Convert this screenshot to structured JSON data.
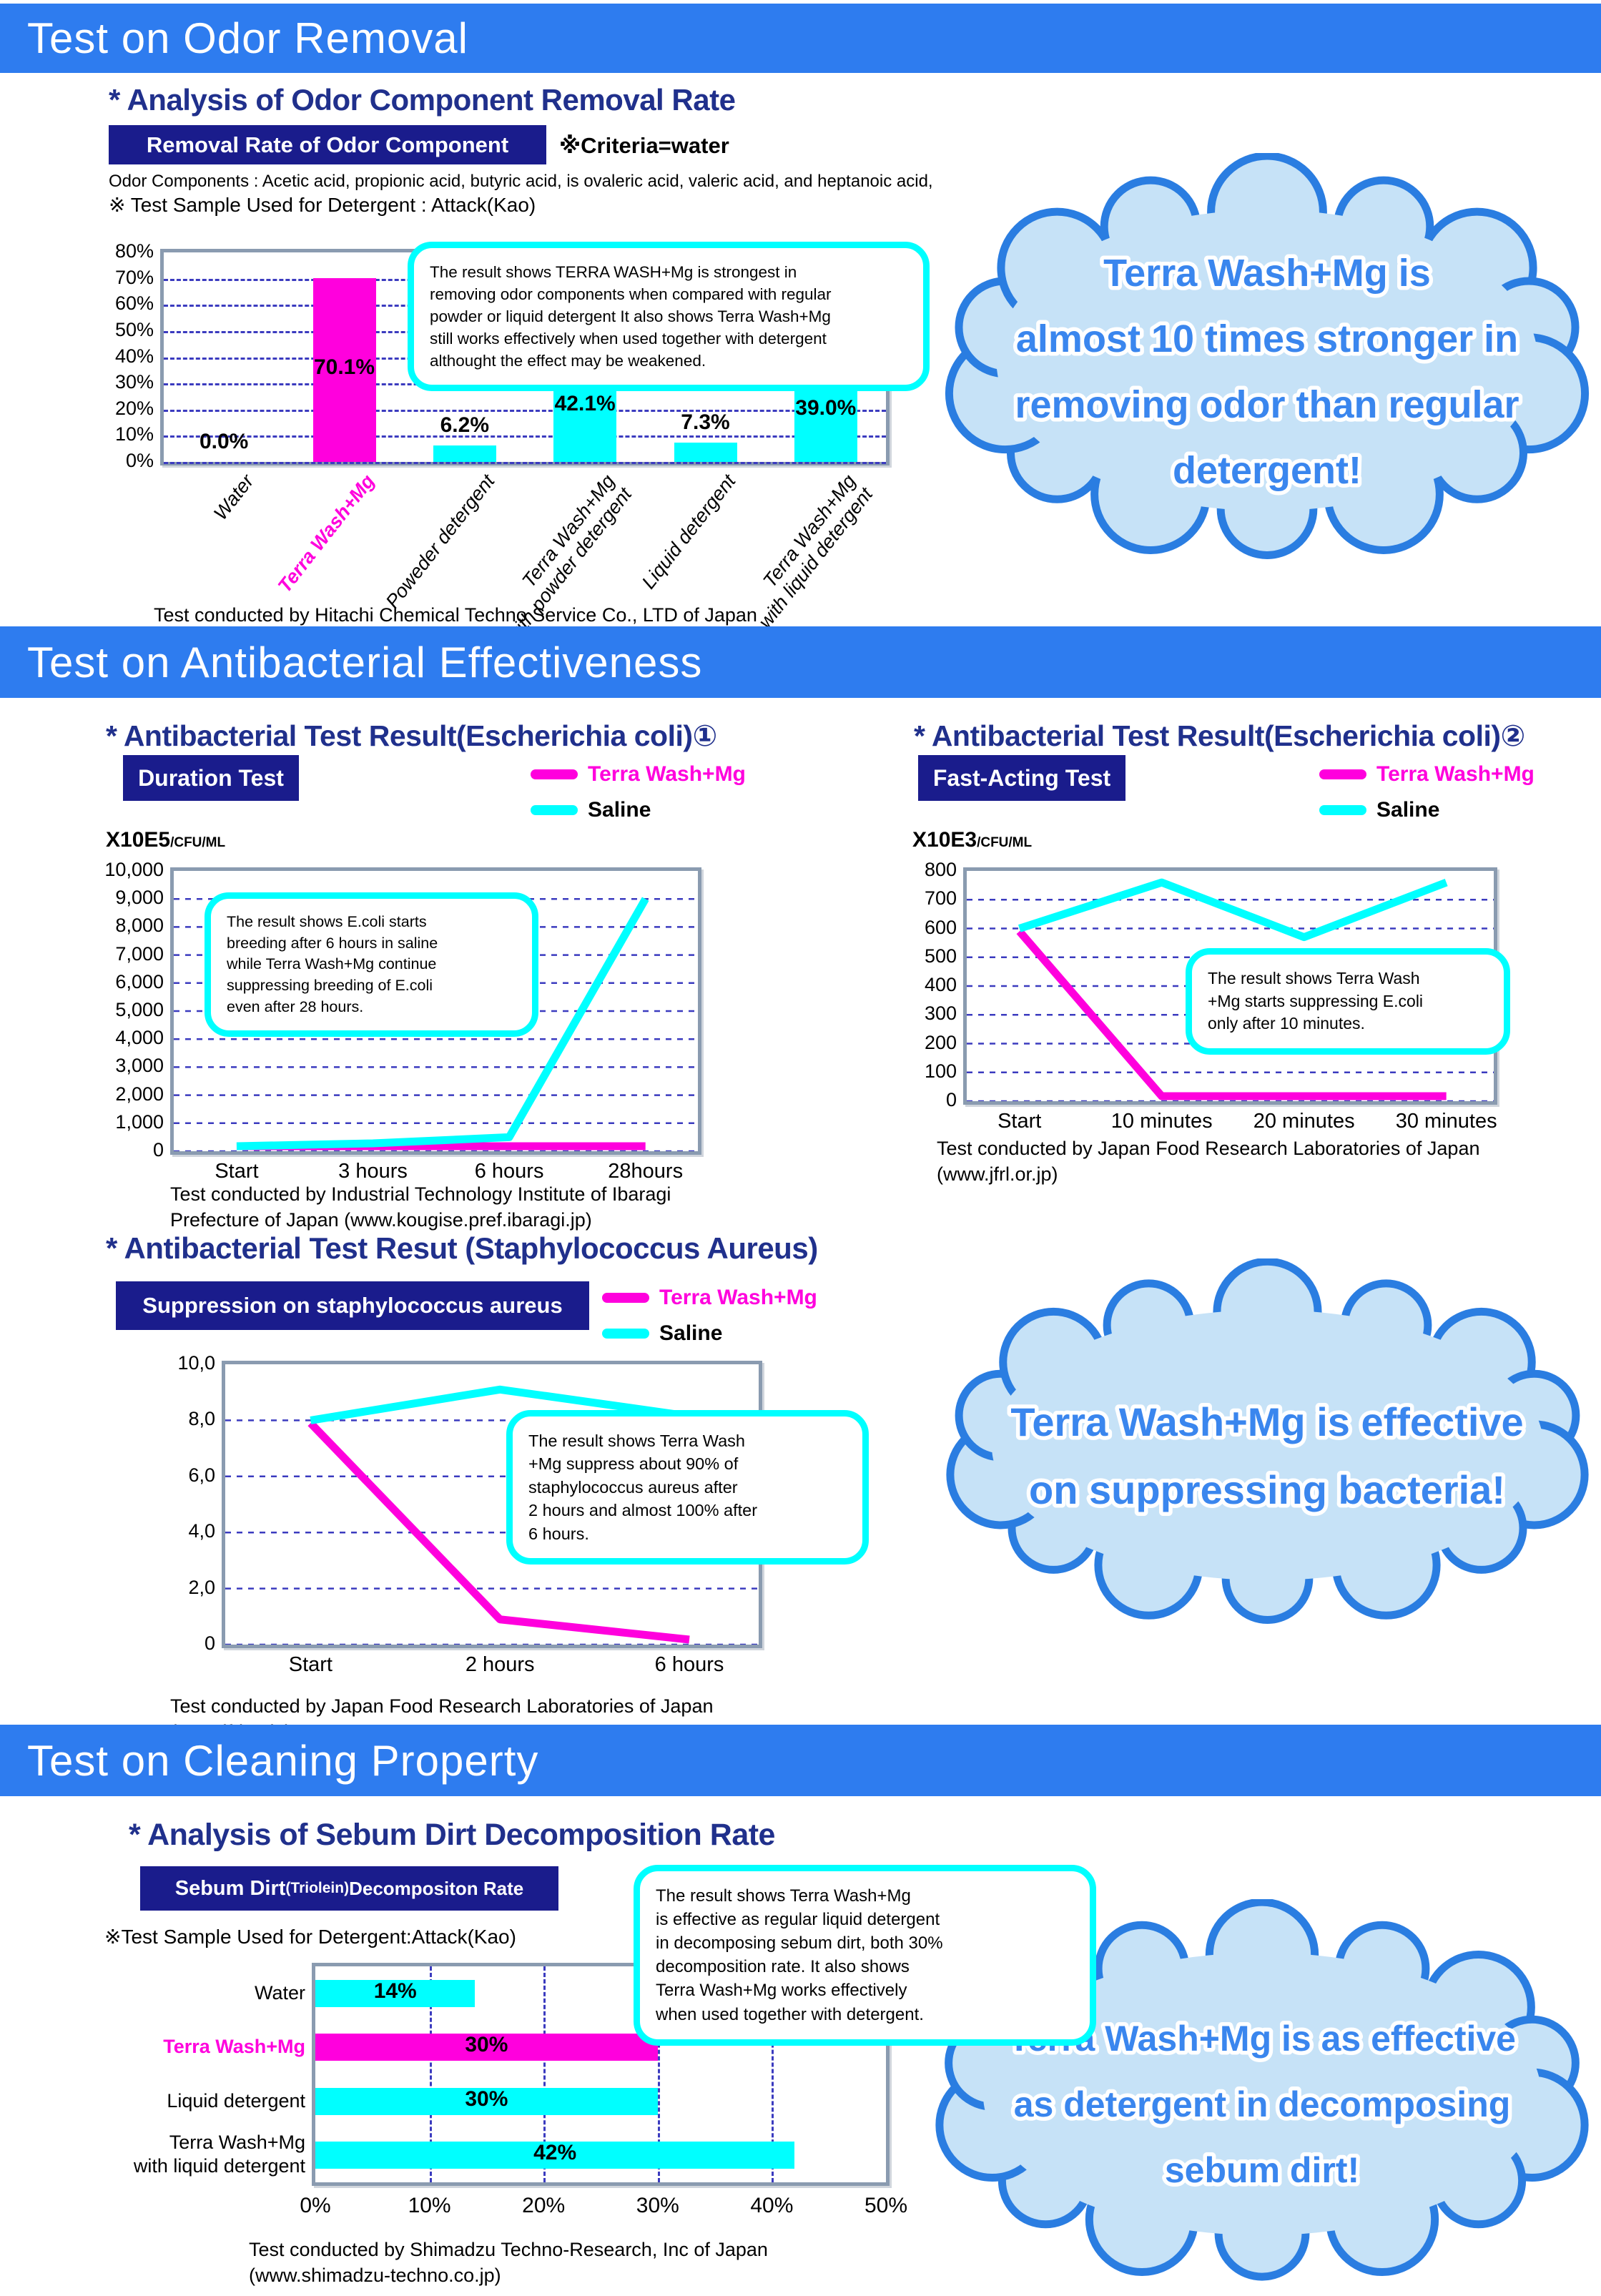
{
  "colors": {
    "header_blue": "#2e7cef",
    "navy": "#1a1c8c",
    "title_navy": "#20308c",
    "magenta": "#ff00dd",
    "cyan": "#00ffff",
    "cloud_fill": "#c6e2f7",
    "cloud_border": "#2a7de1",
    "cloud_text": "#3a86ee",
    "grid_blue": "#3b3bbf",
    "plot_border": "#8a9bb0"
  },
  "legend": {
    "terra": "Terra Wash+Mg",
    "saline": "Saline"
  },
  "odor": {
    "header": "Test on Odor Removal",
    "analysis_title": "* Analysis of Odor Component Removal Rate",
    "badge": "Removal Rate of Odor Component",
    "criteria_note": "※Criteria=water",
    "components_note": "Odor Components : Acetic acid, propionic acid, butyric acid, is ovaleric acid, valeric acid, and heptanoic acid,",
    "sample_note": "※ Test Sample Used for Detergent : Attack(Kao)",
    "callout": "The result shows TERRA WASH+Mg is strongest in\nremoving odor components when compared with regular\npowder or liquid detergent  It also shows Terra Wash+Mg\nstill works effectively when used together with detergent\nalthought the effect may be weakened.",
    "source": "Test conducted by Hitachi Chemical Techno Service Co., LTD of Japan\n(www.hitachi-chem-ts.co.jp)",
    "cloud": [
      "Terra Wash+Mg is",
      "almost 10 times stronger in",
      "removing odor than regular",
      "detergent!"
    ]
  },
  "antibacterial": {
    "header": "Test on Antibacterial Effectiveness",
    "duration": {
      "title": "* Antibacterial Test Result(Escherichia coli)①",
      "badge": "Duration Test",
      "unit": "X10E5",
      "unit_sub": "/CFU/ML",
      "callout": "The result shows E.coli starts\nbreeding after 6 hours in saline\nwhile Terra Wash+Mg continue\nsuppressing breeding of E.coli\neven after 28 hours.",
      "source": "Test conducted by Industrial Technology Institute of Ibaragi\nPrefecture of Japan (www.kougise.pref.ibaragi.jp)"
    },
    "fast": {
      "title": "* Antibacterial Test Result(Escherichia coli)②",
      "badge": "Fast-Acting Test",
      "unit": "X10E3",
      "unit_sub": "/CFU/ML",
      "callout": "The result shows Terra Wash\n+Mg starts suppressing E.coli\nonly after 10 minutes.",
      "source": "Test conducted by Japan Food Research Laboratories of Japan\n(www.jfrl.or.jp)"
    },
    "staph": {
      "title": "* Antibacterial Test Resut (Staphylococcus Aureus)",
      "badge": "Suppression on staphylococcus aureus",
      "callout": "The result shows Terra Wash\n+Mg suppress about 90% of\nstaphylococcus aureus after\n2 hours and almost 100% after\n6 hours.",
      "source": "Test conducted by Japan Food Research Laboratories of Japan\n(www.jfrl.or.jp)"
    },
    "cloud": [
      "Terra Wash+Mg is effective",
      "on suppressing bacteria!"
    ]
  },
  "cleaning": {
    "header": "Test on Cleaning Property",
    "analysis_title": "* Analysis of Sebum Dirt Decomposition Rate",
    "badge_main": "Sebum Dirt",
    "badge_paren": "(Triolein)",
    "badge_rest": " Decompositon Rate",
    "sample_note": "※Test Sample Used for Detergent:Attack(Kao)",
    "callout": "The result shows Terra Wash+Mg\nis effective as regular liquid detergent\nin decomposing sebum dirt, both 30%\ndecomposition rate.  It also shows\nTerra Wash+Mg works effectively\nwhen used together with detergent.",
    "source": "Test conducted by Shimadzu Techno-Research, Inc of Japan\n(www.shimadzu-techno.co.jp)",
    "cloud": [
      "Terra Wash+Mg is as effective",
      "as detergent in decomposing",
      "sebum dirt!"
    ]
  },
  "chart_data": [
    {
      "id": "odor_removal",
      "type": "bar",
      "title": "Removal Rate of Odor Component",
      "criteria": "Criteria=water",
      "categories": [
        "Water",
        "Terra Wash+Mg",
        "Poweder detergent",
        "Terra Wash+Mg\nwith powder detergent",
        "Liquid detergent",
        "Terra Wash+Mg\nwith liquid detergent"
      ],
      "values": [
        0.0,
        70.1,
        6.2,
        42.1,
        7.3,
        39.0
      ],
      "value_labels": [
        "0.0%",
        "70.1%",
        "6.2%",
        "42.1%",
        "7.3%",
        "39.0%"
      ],
      "bar_colors": [
        "#00ffff",
        "#ff00dd",
        "#00ffff",
        "#00ffff",
        "#00ffff",
        "#00ffff"
      ],
      "category_colors": [
        "#000000",
        "#ff00dd",
        "#000000",
        "#000000",
        "#000000",
        "#000000"
      ],
      "ylim": [
        0,
        80
      ],
      "ytick_labels": [
        "0%",
        "10%",
        "20%",
        "30%",
        "40%",
        "50%",
        "60%",
        "70%",
        "80%"
      ],
      "grid": true
    },
    {
      "id": "duration_test",
      "type": "line",
      "title": "Duration Test",
      "ylabel": "X10E5/CFU/ML",
      "x": [
        "Start",
        "3 hours",
        "6 hours",
        "28hours"
      ],
      "series": [
        {
          "name": "Terra Wash+Mg",
          "color": "#ff00dd",
          "values": [
            100,
            80,
            70,
            60
          ]
        },
        {
          "name": "Saline",
          "color": "#00ffff",
          "values": [
            130,
            280,
            500,
            9000
          ]
        }
      ],
      "ylim": [
        0,
        10000
      ],
      "ytick_labels": [
        "0",
        "1,000",
        "2,000",
        "3,000",
        "4,000",
        "5,000",
        "6,000",
        "7,000",
        "8,000",
        "9,000",
        "10,000"
      ],
      "grid": true,
      "legend_position": "top-right"
    },
    {
      "id": "fast_acting_test",
      "type": "line",
      "title": "Fast-Acting Test",
      "ylabel": "X10E3/CFU/ML",
      "x": [
        "Start",
        "10 minutes",
        "20 minutes",
        "30 minutes"
      ],
      "series": [
        {
          "name": "Terra Wash+Mg",
          "color": "#ff00dd",
          "values": [
            590,
            10,
            10,
            10
          ]
        },
        {
          "name": "Saline",
          "color": "#00ffff",
          "values": [
            600,
            760,
            570,
            760
          ]
        }
      ],
      "ylim": [
        0,
        800
      ],
      "ytick_labels": [
        "0",
        "100",
        "200",
        "300",
        "400",
        "500",
        "600",
        "700",
        "800"
      ],
      "grid": true,
      "legend_position": "top-right"
    },
    {
      "id": "staph_suppression",
      "type": "line",
      "title": "Suppression on staphylococcus aureus",
      "x": [
        "Start",
        "2 hours",
        "6 hours"
      ],
      "series": [
        {
          "name": "Terra Wash+Mg",
          "color": "#ff00dd",
          "values": [
            7.9,
            0.9,
            0.05
          ]
        },
        {
          "name": "Saline",
          "color": "#00ffff",
          "values": [
            8.0,
            9.1,
            8.15
          ]
        }
      ],
      "ylim": [
        0,
        10
      ],
      "ytick_labels": [
        "0",
        "2,0",
        "4,0",
        "6,0",
        "8,0",
        "10,0"
      ],
      "grid": true,
      "legend_position": "top-right"
    },
    {
      "id": "sebum_decomposition",
      "type": "bar-horizontal",
      "title": "Sebum Dirt (Triolein) Decompositon Rate",
      "categories": [
        "Water",
        "Terra Wash+Mg",
        "Liquid detergent",
        "Terra Wash+Mg\nwith liquid detergent"
      ],
      "values": [
        14,
        30,
        30,
        42
      ],
      "value_labels": [
        "14%",
        "30%",
        "30%",
        "42%"
      ],
      "bar_colors": [
        "#00ffff",
        "#ff00dd",
        "#00ffff",
        "#00ffff"
      ],
      "category_colors": [
        "#000000",
        "#ff00dd",
        "#000000",
        "#000000"
      ],
      "xlim": [
        0,
        50
      ],
      "xtick_labels": [
        "0%",
        "10%",
        "20%",
        "30%",
        "40%",
        "50%"
      ],
      "grid": true
    }
  ]
}
